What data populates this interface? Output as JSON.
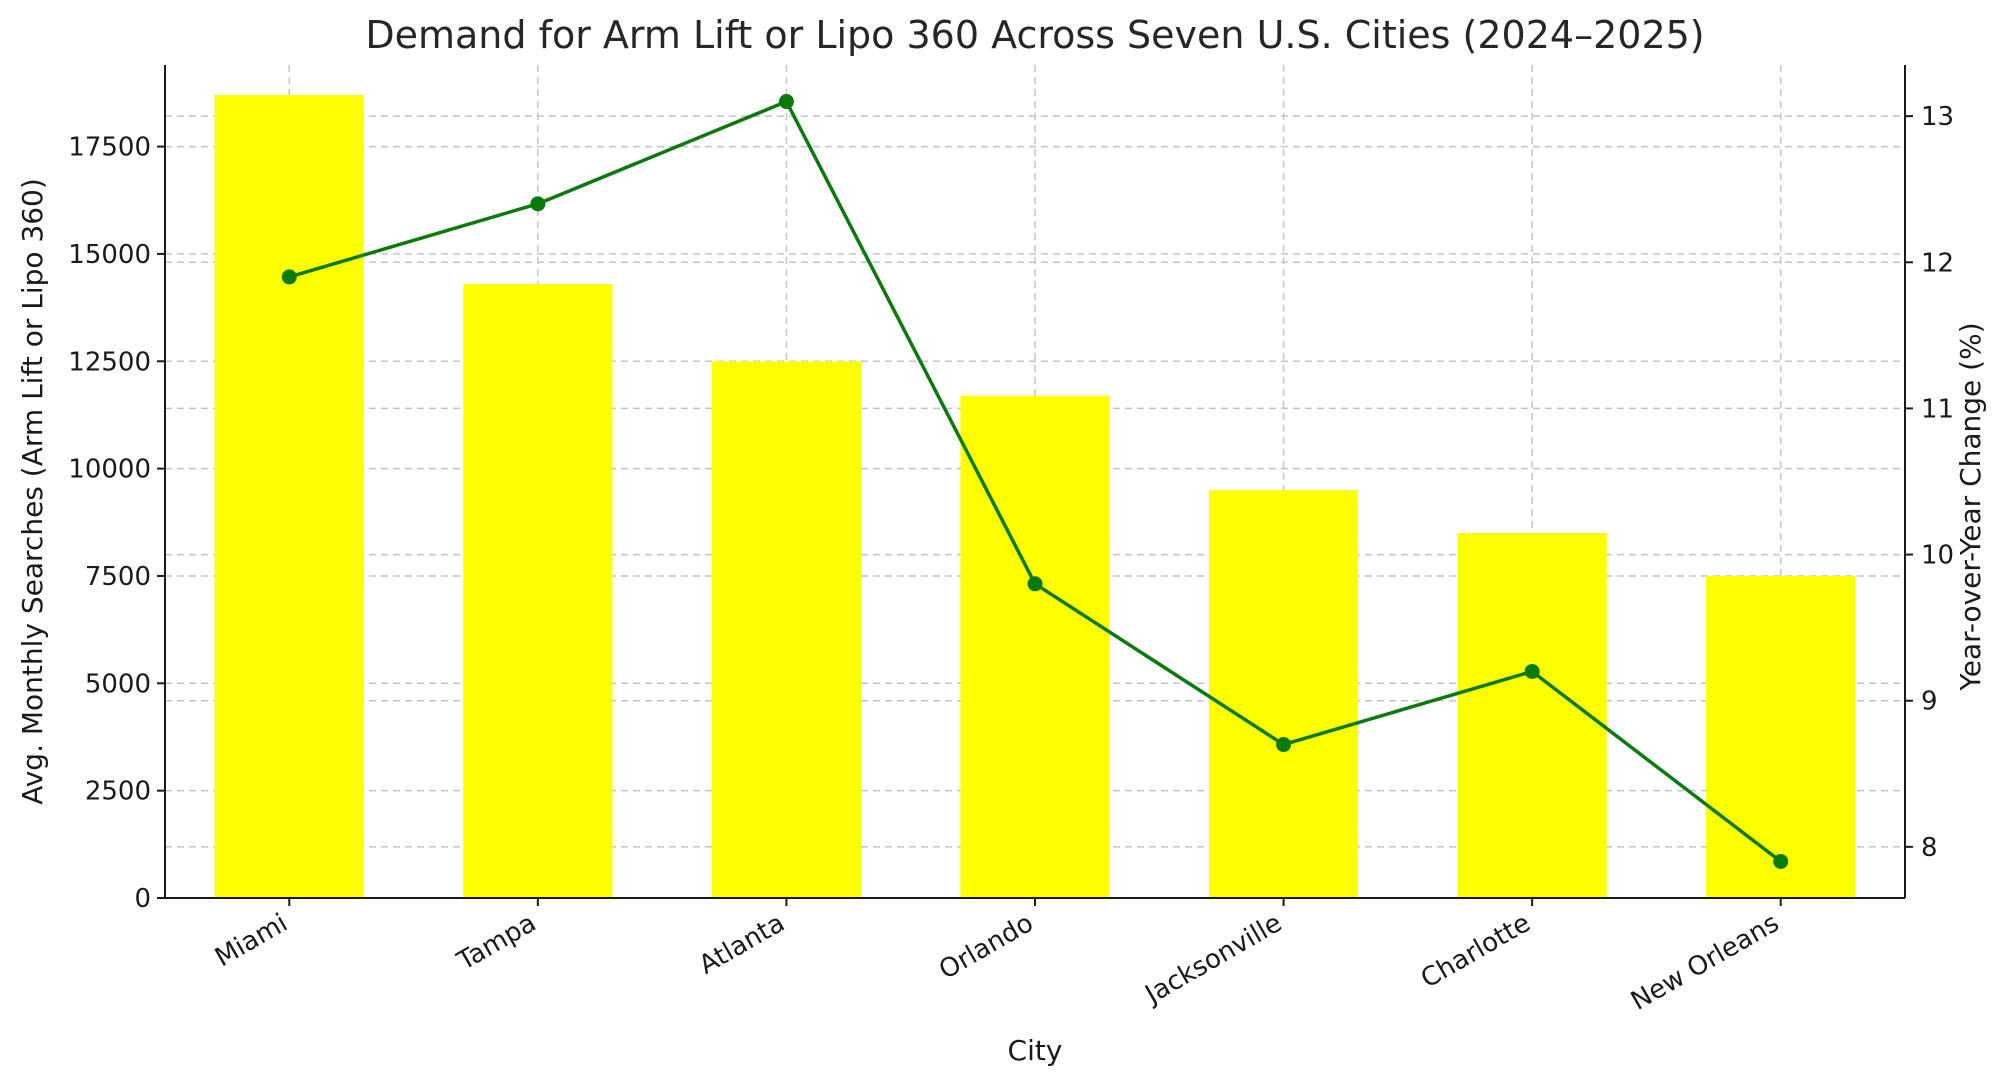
{
  "chart_data": {
    "type": "bar",
    "title": "Demand for Arm Lift or Lipo 360 Across Seven U.S. Cities (2024–2025)",
    "xlabel": "City",
    "ylabel": "Avg. Monthly Searches (Arm Lift or Lipo 360)",
    "y2label": "Year-over-Year Change (%)",
    "categories": [
      "Miami",
      "Tampa",
      "Atlanta",
      "Orlando",
      "Jacksonville",
      "Charlotte",
      "New Orleans"
    ],
    "series": [
      {
        "type": "bar",
        "axis": "left",
        "color": "#ffff00",
        "values": [
          18700,
          14300,
          12500,
          11700,
          9500,
          8500,
          7500
        ]
      },
      {
        "type": "line",
        "axis": "right",
        "color": "#0a7a0a",
        "values": [
          11.9,
          12.4,
          13.1,
          9.8,
          8.7,
          9.2,
          7.9
        ]
      }
    ],
    "ylim": [
      0,
      19400
    ],
    "y_ticks": [
      0,
      2500,
      5000,
      7500,
      10000,
      12500,
      15000,
      17500
    ],
    "y2lim": [
      7.65,
      13.35
    ],
    "y2_ticks": [
      8,
      9,
      10,
      11,
      12,
      13
    ],
    "grid": true
  }
}
